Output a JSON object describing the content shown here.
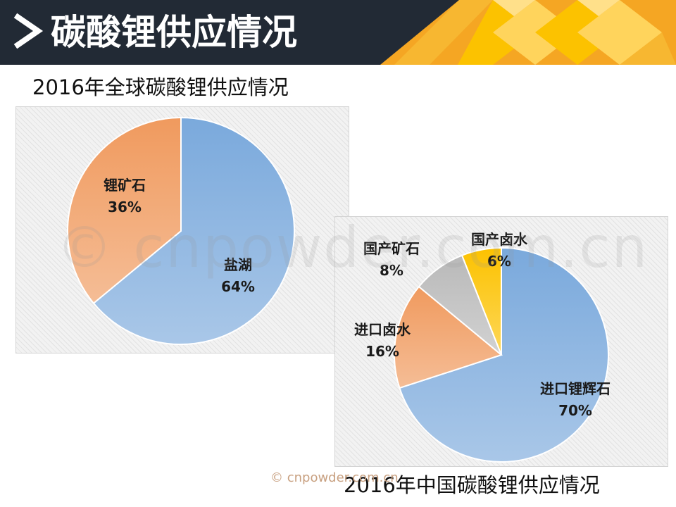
{
  "header": {
    "title": "碳酸锂供应情况",
    "arrow_icon": "chevron-right-icon",
    "background_color": "#222a35",
    "accent_colors": [
      "#f5a623",
      "#fcc200",
      "#ffd45c"
    ]
  },
  "watermark": "© cnpowder.com.cn",
  "footer_credit": "© cnpowder.com.cn",
  "chart_data": [
    {
      "type": "pie",
      "title": "2016年全球碳酸锂供应情况",
      "slices": [
        {
          "name": "盐湖",
          "value": 64,
          "label": "64%",
          "color": "#7aa9dc"
        },
        {
          "name": "锂矿石",
          "value": 36,
          "label": "36%",
          "color": "#f09a5e"
        }
      ],
      "legend": "none"
    },
    {
      "type": "pie",
      "title": "2016年中国碳酸锂供应情况",
      "slices": [
        {
          "name": "进口锂辉石",
          "value": 70,
          "label": "70%",
          "color": "#7aa9dc"
        },
        {
          "name": "进口卤水",
          "value": 16,
          "label": "16%",
          "color": "#f09a5e"
        },
        {
          "name": "国产矿石",
          "value": 8,
          "label": "8%",
          "color": "#b9b9b9"
        },
        {
          "name": "国产卤水",
          "value": 6,
          "label": "6%",
          "color": "#fcc200"
        }
      ],
      "legend": "none"
    }
  ]
}
